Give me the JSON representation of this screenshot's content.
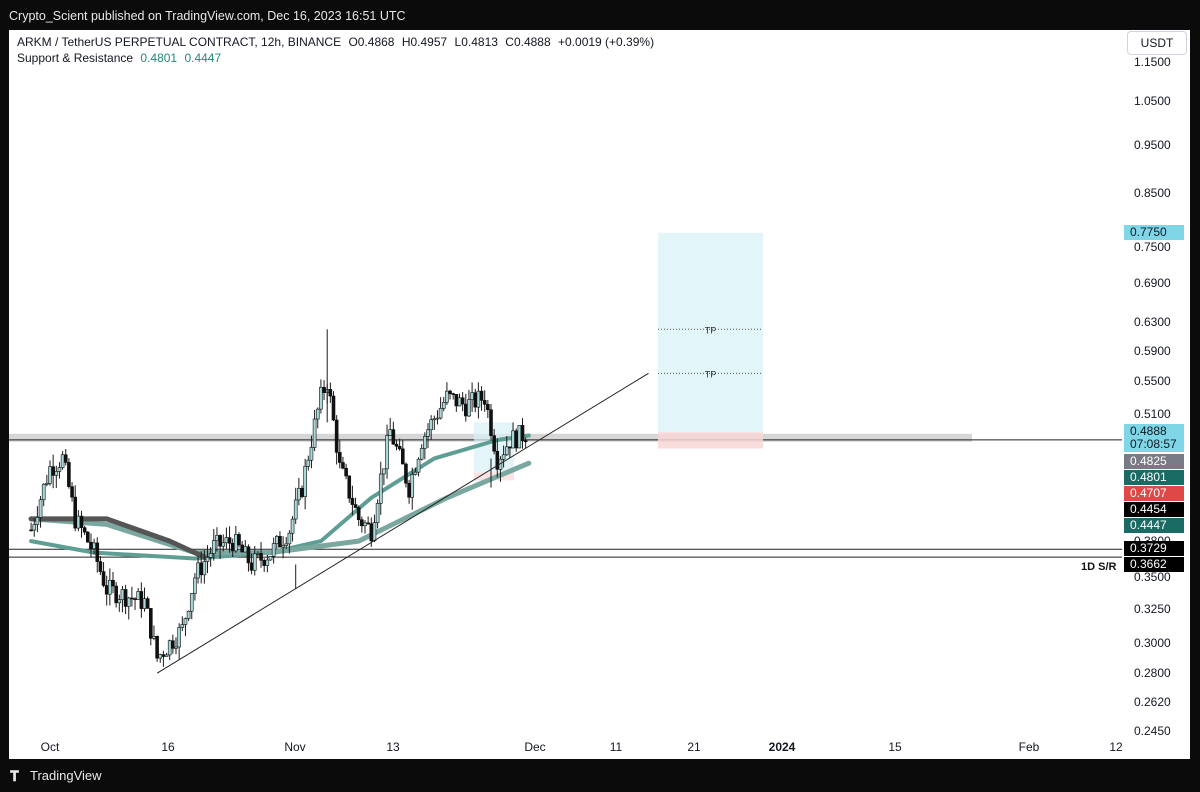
{
  "header": {
    "published": "Crypto_Scient published on TradingView.com, Dec 16, 2023 16:51 UTC"
  },
  "legend": {
    "symbol": "ARKM / TetherUS PERPETUAL CONTRACT, 12h, BINANCE",
    "open": "O0.4868",
    "high": "H0.4957",
    "low": "L0.4813",
    "close": "C0.4888",
    "change": "+0.0019 (+0.39%)",
    "indicator": "Support & Resistance",
    "ind_v1": "0.4801",
    "ind_v2": "0.4447"
  },
  "currency": "USDT",
  "footer": {
    "brand": "TradingView"
  },
  "price_ticks": [
    "1.1500",
    "1.0500",
    "0.9500",
    "0.8500",
    "0.7500",
    "0.6900",
    "0.6300",
    "0.5900",
    "0.5500",
    "0.5100",
    "0.3800",
    "0.3500",
    "0.3250",
    "0.3000",
    "0.2800",
    "0.2620",
    "0.2450"
  ],
  "price_tags": [
    {
      "label": "0.7750",
      "value": 0.775,
      "bg": "#7fd6e6",
      "fg": "#131722"
    },
    {
      "label": "0.4888",
      "value": 0.4888,
      "bg": "#7fd6e6",
      "fg": "#131722",
      "sub": "07:08:57"
    },
    {
      "label": "0.4825",
      "value": 0.4825,
      "bg": "#787b86",
      "fg": "#ffffff"
    },
    {
      "label": "0.4801",
      "value": 0.4801,
      "bg": "#1a6b63",
      "fg": "#ffffff"
    },
    {
      "label": "0.4707",
      "value": 0.4707,
      "bg": "#e04848",
      "fg": "#ffffff"
    },
    {
      "label": "0.4454",
      "value": 0.4454,
      "bg": "#000000",
      "fg": "#ffffff"
    },
    {
      "label": "0.4447",
      "value": 0.4447,
      "bg": "#1a6b63",
      "fg": "#ffffff"
    },
    {
      "label": "0.3729",
      "value": 0.3729,
      "bg": "#000000",
      "fg": "#ffffff"
    },
    {
      "label": "0.3662",
      "value": 0.3662,
      "bg": "#000000",
      "fg": "#ffffff"
    }
  ],
  "annotations": {
    "sr_label": "1D S/R",
    "tp_label": "TP"
  },
  "chart_data": {
    "type": "candlestick",
    "timeframe": "12h",
    "x_ticks": [
      {
        "label": "Oct"
      },
      {
        "label": "16"
      },
      {
        "label": "Nov"
      },
      {
        "label": "13"
      },
      {
        "label": "Dec"
      },
      {
        "label": "11"
      },
      {
        "label": "21"
      },
      {
        "label": "2024",
        "bold": true
      },
      {
        "label": "15"
      },
      {
        "label": "Feb"
      },
      {
        "label": "12"
      }
    ],
    "y_scale": "log",
    "ylim": [
      0.245,
      1.2
    ],
    "price_path": [
      [
        "Sep 28",
        0.39
      ],
      [
        "Oct 1",
        0.45
      ],
      [
        "Oct 3",
        0.46
      ],
      [
        "Oct 5",
        0.4
      ],
      [
        "Oct 8",
        0.37
      ],
      [
        "Oct 10",
        0.34
      ],
      [
        "Oct 13",
        0.335
      ],
      [
        "Oct 16",
        0.33
      ],
      [
        "Oct 18",
        0.29
      ],
      [
        "Oct 22",
        0.31
      ],
      [
        "Oct 24",
        0.35
      ],
      [
        "Oct 27",
        0.375
      ],
      [
        "Oct 30",
        0.38
      ],
      [
        "Nov 2",
        0.36
      ],
      [
        "Nov 5",
        0.37
      ],
      [
        "Nov 8",
        0.39
      ],
      [
        "Nov 10",
        0.43
      ],
      [
        "Nov 13",
        0.53
      ],
      [
        "Nov 14",
        0.55
      ],
      [
        "Nov 16",
        0.45
      ],
      [
        "Nov 19",
        0.4
      ],
      [
        "Nov 21",
        0.39
      ],
      [
        "Nov 24",
        0.49
      ],
      [
        "Nov 27",
        0.43
      ],
      [
        "Nov 29",
        0.48
      ],
      [
        "Dec 3",
        0.53
      ],
      [
        "Dec 6",
        0.52
      ],
      [
        "Dec 9",
        0.53
      ],
      [
        "Dec 11",
        0.46
      ],
      [
        "Dec 13",
        0.48
      ],
      [
        "Dec 16",
        0.4888
      ]
    ],
    "moving_averages": [
      {
        "color": "#5f9e94",
        "path": [
          [
            "Sep 28",
            0.38
          ],
          [
            "Oct 8",
            0.37
          ],
          [
            "Oct 24",
            0.365
          ],
          [
            "Nov 5",
            0.37
          ],
          [
            "Nov 13",
            0.38
          ],
          [
            "Nov 21",
            0.42
          ],
          [
            "Dec 1",
            0.46
          ],
          [
            "Dec 11",
            0.48
          ],
          [
            "Dec 16",
            0.485
          ]
        ]
      },
      {
        "color": "#7aa8a0",
        "path": [
          [
            "Sep 28",
            0.4
          ],
          [
            "Oct 10",
            0.395
          ],
          [
            "Oct 24",
            0.37
          ],
          [
            "Nov 5",
            0.37
          ],
          [
            "Nov 19",
            0.38
          ],
          [
            "Dec 3",
            0.42
          ],
          [
            "Dec 16",
            0.455
          ]
        ]
      },
      {
        "color": "#555555",
        "path": [
          [
            "Sep 28",
            0.4
          ],
          [
            "Oct 10",
            0.4
          ],
          [
            "Oct 20",
            0.38
          ],
          [
            "Oct 26",
            0.365
          ]
        ]
      }
    ],
    "trendline": [
      [
        "Oct 18",
        0.28
      ],
      [
        "Jan 4",
        0.56
      ]
    ],
    "position": {
      "entry": 0.4888,
      "stop": 0.4707,
      "target": 0.775,
      "tp_levels": [
        0.62,
        0.56
      ]
    }
  }
}
